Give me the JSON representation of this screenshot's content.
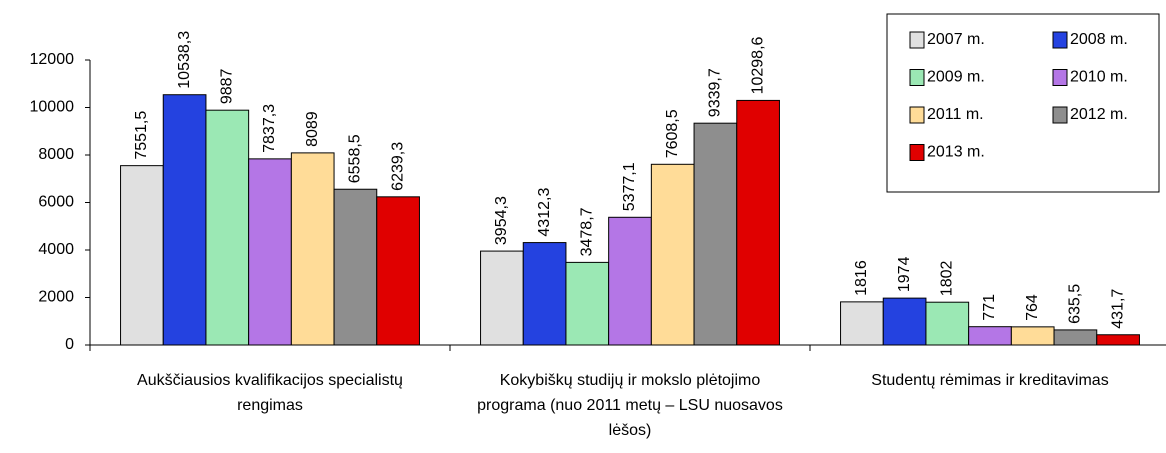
{
  "chart_data": {
    "type": "bar",
    "categories": [
      "Aukščiausios kvalifikacijos specialistų rengimas",
      "Kokybiškų studijų ir mokslo plėtojimo programa (nuo 2011 metų – LSU nuosavos lėšos)",
      "Studentų rėmimas ir kreditavimas"
    ],
    "series": [
      {
        "name": "2007 m.",
        "color": "#e0e0e0",
        "values": [
          7551.5,
          3954.3,
          1816
        ],
        "value_labels": [
          "7551,5",
          "3954,3",
          "1816"
        ]
      },
      {
        "name": "2008 m.",
        "color": "#2442e0",
        "values": [
          10538.3,
          4312.3,
          1974
        ],
        "value_labels": [
          "10538,3",
          "4312,3",
          "1974"
        ]
      },
      {
        "name": "2009 m.",
        "color": "#9be8b4",
        "values": [
          9887,
          3478.7,
          1802
        ],
        "value_labels": [
          "9887",
          "3478,7",
          "1802"
        ]
      },
      {
        "name": "2010 m.",
        "color": "#b476e6",
        "values": [
          7837.3,
          5377.1,
          771
        ],
        "value_labels": [
          "7837,3",
          "5377,1",
          "771"
        ]
      },
      {
        "name": "2011 m.",
        "color": "#ffdc98",
        "values": [
          8089,
          7608.5,
          764
        ],
        "value_labels": [
          "8089",
          "7608,5",
          "764"
        ]
      },
      {
        "name": "2012 m.",
        "color": "#8e8e8e",
        "values": [
          6558.5,
          9339.7,
          635.5
        ],
        "value_labels": [
          "6558,5",
          "9339,7",
          "635,5"
        ]
      },
      {
        "name": "2013 m.",
        "color": "#e00000",
        "values": [
          6239.3,
          10298.6,
          431.7
        ],
        "value_labels": [
          "6239,3",
          "10298,6",
          "431,7"
        ]
      }
    ],
    "ylim": [
      0,
      12000
    ],
    "yticks": [
      0,
      2000,
      4000,
      6000,
      8000,
      10000,
      12000
    ],
    "grid": false
  }
}
